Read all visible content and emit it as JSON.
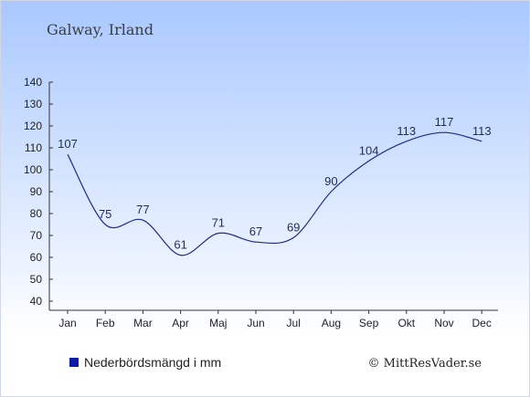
{
  "chart_data": {
    "type": "line",
    "title": "Galway, Irland",
    "categories": [
      "Jan",
      "Feb",
      "Mar",
      "Apr",
      "Maj",
      "Jun",
      "Jul",
      "Aug",
      "Sep",
      "Okt",
      "Nov",
      "Dec"
    ],
    "series": [
      {
        "name": "Nederbördsmängd i mm",
        "values": [
          107,
          75,
          77,
          61,
          71,
          67,
          69,
          90,
          104,
          113,
          117,
          113
        ]
      }
    ],
    "ylim": [
      40,
      140
    ],
    "yticks": [
      40,
      50,
      60,
      70,
      80,
      90,
      100,
      110,
      120,
      130,
      140
    ],
    "grid": false,
    "legend": "bottom-left",
    "colors": {
      "line": "#1f2b8c",
      "legend_marker": "#0d1aa8",
      "bg_top": "#a9c8ff",
      "bg_bottom": "#ffffff"
    }
  },
  "credit": "© MittResVader.se"
}
